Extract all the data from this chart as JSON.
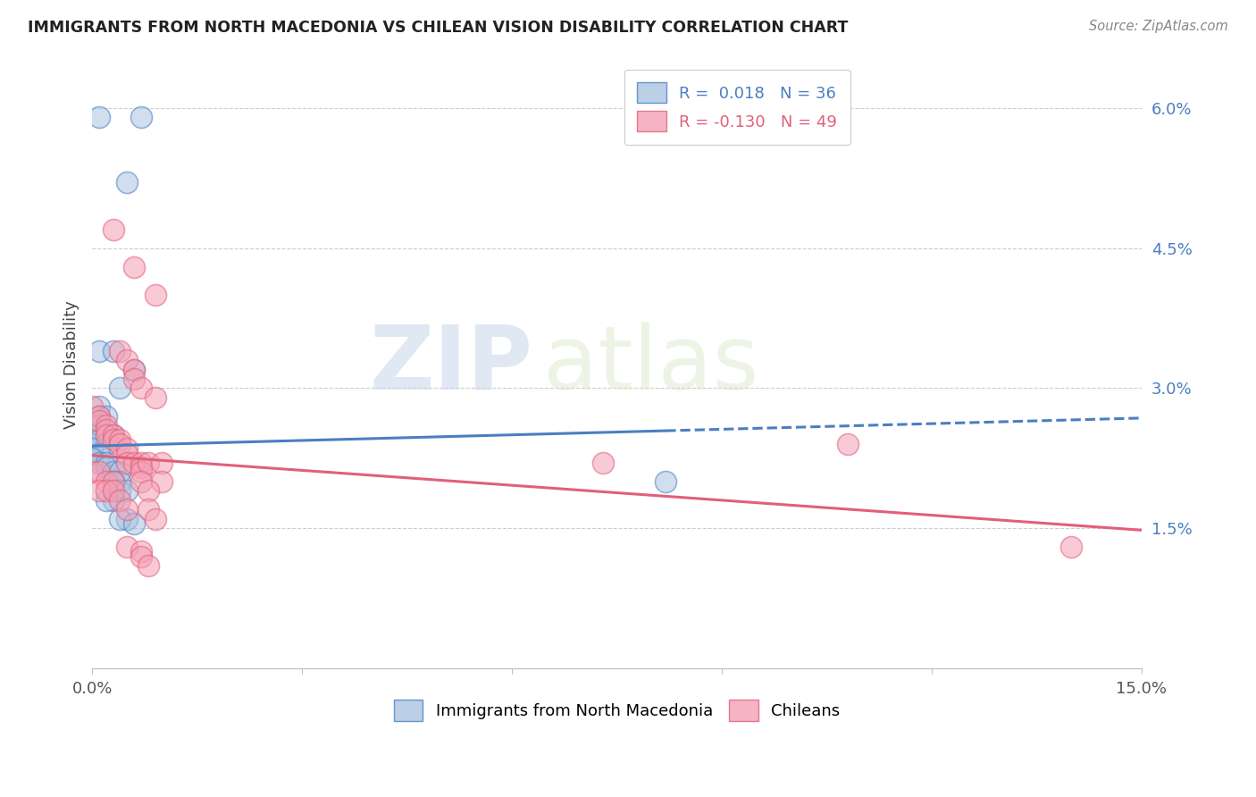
{
  "title": "IMMIGRANTS FROM NORTH MACEDONIA VS CHILEAN VISION DISABILITY CORRELATION CHART",
  "source": "Source: ZipAtlas.com",
  "ylabel": "Vision Disability",
  "xlim": [
    0.0,
    0.15
  ],
  "ylim": [
    0.0,
    0.065
  ],
  "xticks": [
    0.0,
    0.03,
    0.06,
    0.09,
    0.12,
    0.15
  ],
  "yticks_right": [
    0.015,
    0.03,
    0.045,
    0.06
  ],
  "yticklabels_right": [
    "1.5%",
    "3.0%",
    "4.5%",
    "6.0%"
  ],
  "legend_blue_r": "0.018",
  "legend_blue_n": "36",
  "legend_pink_r": "-0.130",
  "legend_pink_n": "49",
  "color_blue": "#aac4e2",
  "color_pink": "#f4a0b5",
  "line_blue": "#4a7fc1",
  "line_pink": "#e0607a",
  "watermark_zip": "ZIP",
  "watermark_atlas": "atlas",
  "blue_line_solid_end": 0.082,
  "blue_line_y0": 0.0238,
  "blue_line_y1": 0.0268,
  "pink_line_y0": 0.0228,
  "pink_line_y1": 0.0148,
  "blue_points": [
    [
      0.001,
      0.059
    ],
    [
      0.007,
      0.059
    ],
    [
      0.005,
      0.052
    ],
    [
      0.001,
      0.034
    ],
    [
      0.003,
      0.034
    ],
    [
      0.006,
      0.032
    ],
    [
      0.004,
      0.03
    ],
    [
      0.001,
      0.028
    ],
    [
      0.001,
      0.027
    ],
    [
      0.002,
      0.027
    ],
    [
      0.0,
      0.026
    ],
    [
      0.001,
      0.026
    ],
    [
      0.0,
      0.025
    ],
    [
      0.002,
      0.025
    ],
    [
      0.003,
      0.025
    ],
    [
      0.0,
      0.024
    ],
    [
      0.001,
      0.0245
    ],
    [
      0.002,
      0.024
    ],
    [
      0.0,
      0.0235
    ],
    [
      0.001,
      0.023
    ],
    [
      0.0,
      0.0225
    ],
    [
      0.001,
      0.022
    ],
    [
      0.002,
      0.022
    ],
    [
      0.002,
      0.0215
    ],
    [
      0.003,
      0.021
    ],
    [
      0.004,
      0.021
    ],
    [
      0.004,
      0.02
    ],
    [
      0.003,
      0.02
    ],
    [
      0.004,
      0.019
    ],
    [
      0.005,
      0.019
    ],
    [
      0.003,
      0.018
    ],
    [
      0.002,
      0.018
    ],
    [
      0.005,
      0.016
    ],
    [
      0.004,
      0.016
    ],
    [
      0.006,
      0.0155
    ],
    [
      0.082,
      0.02
    ]
  ],
  "pink_points": [
    [
      0.003,
      0.047
    ],
    [
      0.006,
      0.043
    ],
    [
      0.009,
      0.04
    ],
    [
      0.004,
      0.034
    ],
    [
      0.005,
      0.033
    ],
    [
      0.006,
      0.032
    ],
    [
      0.006,
      0.031
    ],
    [
      0.007,
      0.03
    ],
    [
      0.009,
      0.029
    ],
    [
      0.0,
      0.028
    ],
    [
      0.001,
      0.027
    ],
    [
      0.001,
      0.0265
    ],
    [
      0.002,
      0.026
    ],
    [
      0.002,
      0.0255
    ],
    [
      0.002,
      0.025
    ],
    [
      0.003,
      0.025
    ],
    [
      0.003,
      0.0245
    ],
    [
      0.004,
      0.0245
    ],
    [
      0.004,
      0.024
    ],
    [
      0.005,
      0.0235
    ],
    [
      0.005,
      0.023
    ],
    [
      0.005,
      0.022
    ],
    [
      0.006,
      0.022
    ],
    [
      0.007,
      0.022
    ],
    [
      0.007,
      0.0215
    ],
    [
      0.007,
      0.021
    ],
    [
      0.008,
      0.022
    ],
    [
      0.01,
      0.022
    ],
    [
      0.0,
      0.021
    ],
    [
      0.001,
      0.021
    ],
    [
      0.002,
      0.02
    ],
    [
      0.003,
      0.02
    ],
    [
      0.007,
      0.02
    ],
    [
      0.01,
      0.02
    ],
    [
      0.001,
      0.019
    ],
    [
      0.002,
      0.019
    ],
    [
      0.003,
      0.019
    ],
    [
      0.004,
      0.018
    ],
    [
      0.008,
      0.019
    ],
    [
      0.005,
      0.017
    ],
    [
      0.008,
      0.017
    ],
    [
      0.009,
      0.016
    ],
    [
      0.005,
      0.013
    ],
    [
      0.007,
      0.0125
    ],
    [
      0.007,
      0.012
    ],
    [
      0.008,
      0.011
    ],
    [
      0.073,
      0.022
    ],
    [
      0.108,
      0.024
    ],
    [
      0.14,
      0.013
    ]
  ]
}
